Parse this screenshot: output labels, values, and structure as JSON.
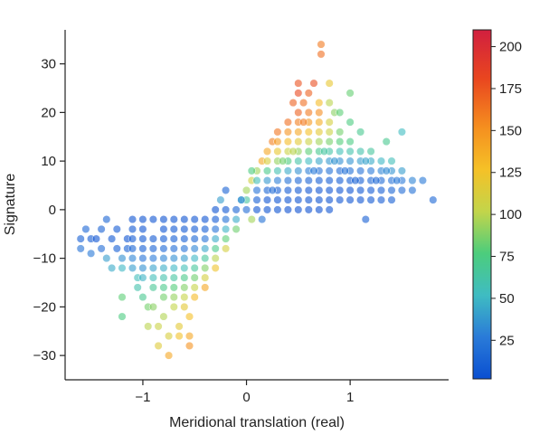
{
  "chart_data": {
    "type": "scatter",
    "xlabel": "Meridional translation (real)",
    "ylabel": "Signature",
    "xlim": [
      -1.75,
      1.95
    ],
    "ylim": [
      -35,
      37
    ],
    "x_ticks": [
      {
        "value": -1,
        "label": "−1"
      },
      {
        "value": 0,
        "label": "0"
      },
      {
        "value": 1,
        "label": "1"
      }
    ],
    "y_ticks": [
      {
        "value": -30,
        "label": "−30"
      },
      {
        "value": -20,
        "label": "−20"
      },
      {
        "value": -10,
        "label": "−10"
      },
      {
        "value": 0,
        "label": "0"
      },
      {
        "value": 10,
        "label": "10"
      },
      {
        "value": 20,
        "label": "20"
      },
      {
        "value": 30,
        "label": "30"
      }
    ],
    "grid": false,
    "colorbar": {
      "range": [
        2,
        210
      ],
      "colormap": "turbo",
      "ticks": [
        {
          "value": 25,
          "label": "25"
        },
        {
          "value": 50,
          "label": "50"
        },
        {
          "value": 75,
          "label": "75"
        },
        {
          "value": 100,
          "label": "100"
        },
        {
          "value": 125,
          "label": "125"
        },
        {
          "value": 150,
          "label": "150"
        },
        {
          "value": 175,
          "label": "175"
        },
        {
          "value": 200,
          "label": "200"
        }
      ]
    },
    "points": [
      [
        -1.6,
        -6,
        10
      ],
      [
        -1.55,
        -4,
        15
      ],
      [
        -1.6,
        -8,
        20
      ],
      [
        -1.5,
        -6,
        8
      ],
      [
        -1.5,
        -9,
        25
      ],
      [
        -1.45,
        -6,
        5
      ],
      [
        -1.4,
        -8,
        18
      ],
      [
        -1.4,
        -4,
        12
      ],
      [
        -1.35,
        -2,
        14
      ],
      [
        -1.35,
        -10,
        40
      ],
      [
        -1.3,
        -6,
        6
      ],
      [
        -1.3,
        -12,
        45
      ],
      [
        -1.25,
        -8,
        10
      ],
      [
        -1.25,
        -4,
        8
      ],
      [
        -1.2,
        -10,
        35
      ],
      [
        -1.2,
        -12,
        50
      ],
      [
        -1.2,
        -18,
        80
      ],
      [
        -1.2,
        -22,
        75
      ],
      [
        -1.15,
        -6,
        4
      ],
      [
        -1.15,
        -8,
        12
      ],
      [
        -1.1,
        -2,
        5
      ],
      [
        -1.1,
        -4,
        6
      ],
      [
        -1.1,
        -6,
        8
      ],
      [
        -1.1,
        -8,
        14
      ],
      [
        -1.1,
        -10,
        30
      ],
      [
        -1.1,
        -12,
        40
      ],
      [
        -1.05,
        -14,
        55
      ],
      [
        -1.05,
        -16,
        60
      ],
      [
        -1.0,
        -2,
        3
      ],
      [
        -1.0,
        -4,
        5
      ],
      [
        -1.0,
        -6,
        6
      ],
      [
        -1.0,
        -8,
        10
      ],
      [
        -1.0,
        -10,
        22
      ],
      [
        -1.0,
        -12,
        35
      ],
      [
        -1.0,
        -14,
        48
      ],
      [
        -1.0,
        -18,
        70
      ],
      [
        -0.95,
        -20,
        85
      ],
      [
        -0.95,
        -24,
        100
      ],
      [
        -0.9,
        -2,
        4
      ],
      [
        -0.9,
        -6,
        7
      ],
      [
        -0.9,
        -8,
        12
      ],
      [
        -0.9,
        -10,
        26
      ],
      [
        -0.9,
        -12,
        42
      ],
      [
        -0.9,
        -14,
        55
      ],
      [
        -0.9,
        -16,
        68
      ],
      [
        -0.9,
        -20,
        90
      ],
      [
        -0.85,
        -24,
        105
      ],
      [
        -0.85,
        -28,
        115
      ],
      [
        -0.8,
        -2,
        3
      ],
      [
        -0.8,
        -4,
        5
      ],
      [
        -0.8,
        -6,
        8
      ],
      [
        -0.8,
        -8,
        15
      ],
      [
        -0.8,
        -10,
        30
      ],
      [
        -0.8,
        -12,
        46
      ],
      [
        -0.8,
        -14,
        60
      ],
      [
        -0.8,
        -16,
        72
      ],
      [
        -0.8,
        -18,
        85
      ],
      [
        -0.8,
        -22,
        98
      ],
      [
        -0.75,
        -26,
        112
      ],
      [
        -0.75,
        -30,
        140
      ],
      [
        -0.7,
        -2,
        4
      ],
      [
        -0.7,
        -4,
        6
      ],
      [
        -0.7,
        -6,
        9
      ],
      [
        -0.7,
        -8,
        18
      ],
      [
        -0.7,
        -10,
        34
      ],
      [
        -0.7,
        -12,
        50
      ],
      [
        -0.7,
        -14,
        64
      ],
      [
        -0.7,
        -16,
        78
      ],
      [
        -0.7,
        -18,
        92
      ],
      [
        -0.7,
        -20,
        102
      ],
      [
        -0.65,
        -24,
        118
      ],
      [
        -0.65,
        -26,
        125
      ],
      [
        -0.6,
        -2,
        3
      ],
      [
        -0.6,
        -4,
        6
      ],
      [
        -0.6,
        -6,
        10
      ],
      [
        -0.6,
        -8,
        22
      ],
      [
        -0.6,
        -10,
        40
      ],
      [
        -0.6,
        -12,
        56
      ],
      [
        -0.6,
        -14,
        72
      ],
      [
        -0.6,
        -16,
        88
      ],
      [
        -0.6,
        -18,
        104
      ],
      [
        -0.6,
        -20,
        118
      ],
      [
        -0.55,
        -22,
        128
      ],
      [
        -0.55,
        -26,
        140
      ],
      [
        -0.55,
        -28,
        150
      ],
      [
        -0.5,
        -2,
        4
      ],
      [
        -0.5,
        -4,
        8
      ],
      [
        -0.5,
        -6,
        14
      ],
      [
        -0.5,
        -8,
        30
      ],
      [
        -0.5,
        -10,
        50
      ],
      [
        -0.5,
        -12,
        66
      ],
      [
        -0.5,
        -14,
        84
      ],
      [
        -0.5,
        -16,
        104
      ],
      [
        -0.5,
        -18,
        130
      ],
      [
        -0.4,
        -2,
        5
      ],
      [
        -0.4,
        -4,
        10
      ],
      [
        -0.4,
        -6,
        22
      ],
      [
        -0.4,
        -8,
        44
      ],
      [
        -0.4,
        -10,
        66
      ],
      [
        -0.4,
        -12,
        88
      ],
      [
        -0.4,
        -14,
        110
      ],
      [
        -0.4,
        -16,
        140
      ],
      [
        -0.3,
        0,
        3
      ],
      [
        -0.3,
        -2,
        8
      ],
      [
        -0.3,
        -4,
        22
      ],
      [
        -0.3,
        -6,
        45
      ],
      [
        -0.3,
        -8,
        72
      ],
      [
        -0.3,
        -10,
        100
      ],
      [
        -0.3,
        -12,
        124
      ],
      [
        -0.2,
        0,
        6
      ],
      [
        -0.2,
        -2,
        20
      ],
      [
        -0.2,
        -4,
        48
      ],
      [
        -0.2,
        -6,
        80
      ],
      [
        -0.2,
        -8,
        110
      ],
      [
        -0.1,
        0,
        14
      ],
      [
        -0.1,
        -2,
        45
      ],
      [
        -0.1,
        -4,
        84
      ],
      [
        -0.05,
        2,
        50
      ],
      [
        -0.25,
        2,
        40
      ],
      [
        0.0,
        0,
        18
      ],
      [
        0.0,
        2,
        65
      ],
      [
        0.0,
        4,
        95
      ],
      [
        0.05,
        6,
        108
      ],
      [
        0.05,
        -2,
        95
      ],
      [
        0.1,
        2,
        10
      ],
      [
        0.1,
        0,
        4
      ],
      [
        0.1,
        4,
        22
      ],
      [
        0.1,
        6,
        55
      ],
      [
        0.1,
        8,
        95
      ],
      [
        0.15,
        10,
        140
      ],
      [
        0.2,
        2,
        5
      ],
      [
        0.2,
        0,
        3
      ],
      [
        0.2,
        4,
        14
      ],
      [
        0.2,
        6,
        38
      ],
      [
        0.2,
        8,
        72
      ],
      [
        0.2,
        10,
        112
      ],
      [
        0.2,
        12,
        140
      ],
      [
        0.25,
        14,
        158
      ],
      [
        0.3,
        2,
        4
      ],
      [
        0.3,
        0,
        3
      ],
      [
        0.3,
        4,
        10
      ],
      [
        0.3,
        6,
        28
      ],
      [
        0.3,
        8,
        58
      ],
      [
        0.3,
        10,
        92
      ],
      [
        0.3,
        12,
        120
      ],
      [
        0.3,
        14,
        145
      ],
      [
        0.3,
        16,
        162
      ],
      [
        0.4,
        2,
        4
      ],
      [
        0.4,
        0,
        2
      ],
      [
        0.4,
        4,
        8
      ],
      [
        0.4,
        6,
        20
      ],
      [
        0.4,
        8,
        45
      ],
      [
        0.4,
        10,
        76
      ],
      [
        0.4,
        12,
        106
      ],
      [
        0.4,
        14,
        130
      ],
      [
        0.4,
        16,
        150
      ],
      [
        0.4,
        18,
        165
      ],
      [
        0.45,
        22,
        170
      ],
      [
        0.5,
        2,
        3
      ],
      [
        0.5,
        0,
        2
      ],
      [
        0.5,
        4,
        6
      ],
      [
        0.5,
        6,
        15
      ],
      [
        0.5,
        8,
        35
      ],
      [
        0.5,
        10,
        62
      ],
      [
        0.5,
        12,
        92
      ],
      [
        0.5,
        14,
        118
      ],
      [
        0.5,
        16,
        140
      ],
      [
        0.5,
        18,
        158
      ],
      [
        0.5,
        20,
        170
      ],
      [
        0.5,
        24,
        180
      ],
      [
        0.5,
        26,
        176
      ],
      [
        0.55,
        22,
        165
      ],
      [
        0.6,
        2,
        3
      ],
      [
        0.6,
        0,
        2
      ],
      [
        0.6,
        4,
        5
      ],
      [
        0.6,
        6,
        12
      ],
      [
        0.6,
        8,
        28
      ],
      [
        0.6,
        10,
        52
      ],
      [
        0.6,
        12,
        80
      ],
      [
        0.6,
        14,
        106
      ],
      [
        0.6,
        16,
        128
      ],
      [
        0.6,
        18,
        148
      ],
      [
        0.6,
        20,
        160
      ],
      [
        0.6,
        24,
        170
      ],
      [
        0.65,
        26,
        178
      ],
      [
        0.7,
        2,
        3
      ],
      [
        0.7,
        0,
        2
      ],
      [
        0.7,
        4,
        4
      ],
      [
        0.7,
        6,
        10
      ],
      [
        0.7,
        8,
        22
      ],
      [
        0.7,
        10,
        44
      ],
      [
        0.7,
        12,
        70
      ],
      [
        0.7,
        14,
        95
      ],
      [
        0.7,
        16,
        118
      ],
      [
        0.7,
        18,
        138
      ],
      [
        0.7,
        20,
        152
      ],
      [
        0.7,
        22,
        130
      ],
      [
        0.72,
        32,
        165
      ],
      [
        0.72,
        34,
        160
      ],
      [
        0.8,
        2,
        3
      ],
      [
        0.8,
        0,
        4
      ],
      [
        0.8,
        4,
        4
      ],
      [
        0.8,
        6,
        9
      ],
      [
        0.8,
        8,
        20
      ],
      [
        0.8,
        10,
        38
      ],
      [
        0.8,
        12,
        62
      ],
      [
        0.8,
        14,
        86
      ],
      [
        0.8,
        16,
        106
      ],
      [
        0.8,
        18,
        110
      ],
      [
        0.8,
        22,
        100
      ],
      [
        0.8,
        26,
        120
      ],
      [
        0.85,
        20,
        90
      ],
      [
        0.9,
        2,
        4
      ],
      [
        0.9,
        4,
        5
      ],
      [
        0.9,
        6,
        9
      ],
      [
        0.9,
        8,
        18
      ],
      [
        0.9,
        10,
        34
      ],
      [
        0.9,
        12,
        56
      ],
      [
        0.9,
        14,
        78
      ],
      [
        0.9,
        16,
        85
      ],
      [
        0.9,
        20,
        80
      ],
      [
        1.0,
        2,
        4
      ],
      [
        1.0,
        4,
        5
      ],
      [
        1.0,
        6,
        10
      ],
      [
        1.0,
        8,
        20
      ],
      [
        1.0,
        10,
        36
      ],
      [
        1.0,
        12,
        60
      ],
      [
        1.0,
        14,
        74
      ],
      [
        1.0,
        18,
        75
      ],
      [
        1.0,
        24,
        82
      ],
      [
        1.1,
        2,
        5
      ],
      [
        1.1,
        4,
        6
      ],
      [
        1.1,
        6,
        11
      ],
      [
        1.1,
        8,
        22
      ],
      [
        1.1,
        10,
        40
      ],
      [
        1.1,
        12,
        60
      ],
      [
        1.1,
        16,
        70
      ],
      [
        1.15,
        -2,
        10
      ],
      [
        1.2,
        2,
        6
      ],
      [
        1.2,
        4,
        8
      ],
      [
        1.2,
        6,
        14
      ],
      [
        1.2,
        8,
        26
      ],
      [
        1.2,
        10,
        45
      ],
      [
        1.2,
        12,
        65
      ],
      [
        1.3,
        2,
        8
      ],
      [
        1.3,
        4,
        10
      ],
      [
        1.3,
        6,
        18
      ],
      [
        1.3,
        8,
        30
      ],
      [
        1.3,
        10,
        50
      ],
      [
        1.35,
        14,
        70
      ],
      [
        1.4,
        2,
        10
      ],
      [
        1.4,
        4,
        14
      ],
      [
        1.4,
        6,
        22
      ],
      [
        1.4,
        8,
        36
      ],
      [
        1.4,
        10,
        55
      ],
      [
        1.5,
        4,
        18
      ],
      [
        1.5,
        6,
        26
      ],
      [
        1.5,
        8,
        40
      ],
      [
        1.5,
        16,
        52
      ],
      [
        1.6,
        4,
        20
      ],
      [
        1.6,
        6,
        30
      ],
      [
        1.7,
        6,
        25
      ],
      [
        1.8,
        2,
        15
      ],
      [
        -0.2,
        4,
        12
      ],
      [
        -0.05,
        2,
        30
      ],
      [
        0.05,
        8,
        75
      ],
      [
        0.15,
        -2,
        20
      ],
      [
        0.25,
        4,
        18
      ],
      [
        0.35,
        10,
        85
      ],
      [
        0.45,
        12,
        100
      ],
      [
        0.55,
        18,
        160
      ],
      [
        0.65,
        8,
        26
      ],
      [
        0.75,
        12,
        64
      ],
      [
        0.85,
        10,
        36
      ],
      [
        0.95,
        8,
        22
      ],
      [
        1.05,
        6,
        12
      ],
      [
        1.15,
        10,
        42
      ],
      [
        1.25,
        6,
        16
      ],
      [
        1.35,
        8,
        32
      ],
      [
        1.45,
        6,
        24
      ]
    ]
  }
}
